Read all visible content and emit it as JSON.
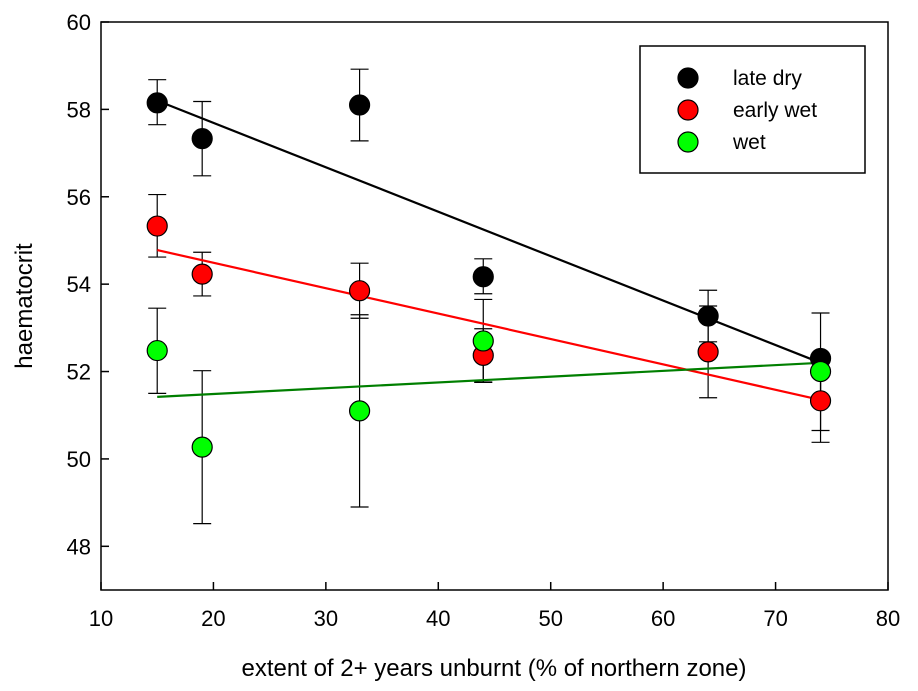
{
  "chart_data": {
    "type": "scatter",
    "title": "",
    "xlabel": "extent of 2+ years unburnt (% of northern zone)",
    "ylabel": "haematocrit",
    "xlim": [
      10,
      80
    ],
    "ylim": [
      47,
      60
    ],
    "xticks": [
      10,
      20,
      30,
      40,
      50,
      60,
      70,
      80
    ],
    "yticks": [
      48,
      50,
      52,
      54,
      56,
      58,
      60
    ],
    "grid": false,
    "legend_position": "top-right",
    "series": [
      {
        "name": "late dry",
        "color": "#000000",
        "line_color": "#000000",
        "points": [
          {
            "x": 15,
            "y": 58.15,
            "err_low": 57.65,
            "err_high": 58.68
          },
          {
            "x": 19,
            "y": 57.33,
            "err_low": 56.48,
            "err_high": 58.18
          },
          {
            "x": 33,
            "y": 58.1,
            "err_low": 57.28,
            "err_high": 58.92
          },
          {
            "x": 44,
            "y": 54.17,
            "err_low": 53.78,
            "err_high": 54.58
          },
          {
            "x": 64,
            "y": 53.27,
            "err_low": 52.68,
            "err_high": 53.86
          },
          {
            "x": 74,
            "y": 52.3,
            "err_low": 51.26,
            "err_high": 53.34
          }
        ],
        "fit": [
          {
            "x": 15,
            "y": 58.2
          },
          {
            "x": 74,
            "y": 52.2
          }
        ]
      },
      {
        "name": "early wet",
        "color": "#ff0000",
        "line_color": "#ff0000",
        "points": [
          {
            "x": 15,
            "y": 55.33,
            "err_low": 54.62,
            "err_high": 56.05
          },
          {
            "x": 19,
            "y": 54.23,
            "err_low": 53.73,
            "err_high": 54.73
          },
          {
            "x": 33,
            "y": 53.85,
            "err_low": 53.22,
            "err_high": 54.48
          },
          {
            "x": 44,
            "y": 52.37,
            "err_low": 51.76,
            "err_high": 52.98
          },
          {
            "x": 64,
            "y": 52.45,
            "err_low": 51.4,
            "err_high": 53.5
          },
          {
            "x": 74,
            "y": 51.33,
            "err_low": 50.65,
            "err_high": 52.01
          }
        ],
        "fit": [
          {
            "x": 15,
            "y": 54.78
          },
          {
            "x": 74,
            "y": 51.35
          }
        ]
      },
      {
        "name": "wet",
        "color": "#00ff00",
        "line_color": "#007f00",
        "points": [
          {
            "x": 15,
            "y": 52.48,
            "err_low": 51.5,
            "err_high": 53.45
          },
          {
            "x": 19,
            "y": 50.27,
            "err_low": 48.52,
            "err_high": 52.02
          },
          {
            "x": 33,
            "y": 51.1,
            "err_low": 48.9,
            "err_high": 53.3
          },
          {
            "x": 44,
            "y": 52.7,
            "err_low": 51.75,
            "err_high": 53.65
          },
          {
            "x": 74,
            "y": 52.0,
            "err_low": 50.38,
            "err_high": 52.2
          }
        ],
        "fit": [
          {
            "x": 15,
            "y": 51.42
          },
          {
            "x": 74,
            "y": 52.2
          }
        ]
      }
    ]
  }
}
